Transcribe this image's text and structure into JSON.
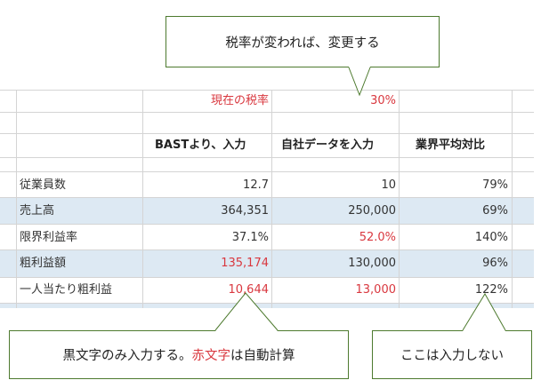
{
  "callouts": {
    "top": "税率が変われば、変更する",
    "bottom_left": {
      "part1": "黒文字のみ入力する。",
      "part2_red": "赤文字",
      "part3": "は自動計算"
    },
    "bottom_right": "ここは入力しない"
  },
  "tax": {
    "label": "現在の税率",
    "value": "30%"
  },
  "columns": {
    "bast": "BASTより、入力",
    "own": "自社データを入力",
    "avg": "業界平均対比"
  },
  "rows": [
    {
      "label": "従業員数",
      "bast": "12.7",
      "own": "10",
      "avg": "79%"
    },
    {
      "label": "売上高",
      "bast": "364,351",
      "own": "250,000",
      "avg": "69%"
    },
    {
      "label": "限界利益率",
      "bast": "37.1%",
      "own": "52.0%",
      "avg": "140%"
    },
    {
      "label": "粗利益額",
      "bast": "135,174",
      "own": "130,000",
      "avg": "96%"
    },
    {
      "label": "一人当たり粗利益",
      "bast": "10,644",
      "own": "13,000",
      "avg": "122%"
    }
  ],
  "colors": {
    "red_text": "#d9383f",
    "band": "#dde9f3",
    "callout_border": "#4d7a2e"
  }
}
